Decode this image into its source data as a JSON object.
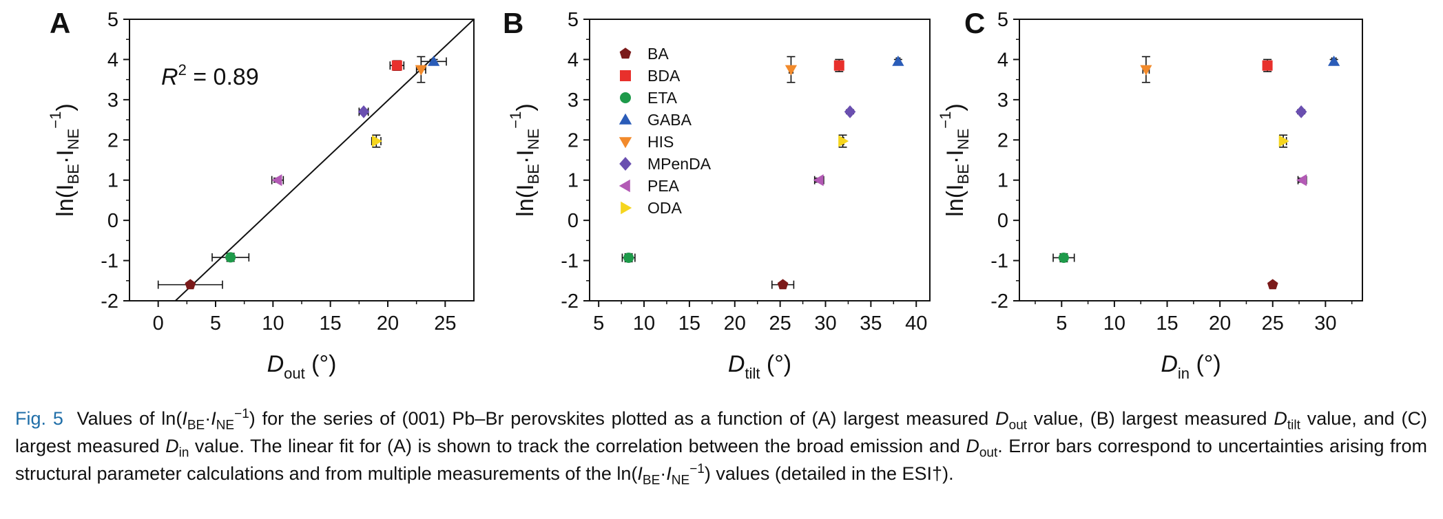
{
  "figure": {
    "ytick_labels": [
      "-2",
      "-1",
      "0",
      "1",
      "2",
      "3",
      "4",
      "5"
    ],
    "ylabel": {
      "prefix": "ln(I",
      "sub1": "BE",
      "mid": "·I",
      "sub2": "NE",
      "sup": "−1",
      "suffix": ")"
    },
    "unit": "(°)"
  },
  "chart_data": [
    {
      "type": "scatter",
      "panel": "A",
      "xlabel": {
        "symbol": "D",
        "sub": "out",
        "unit": "(°)"
      },
      "xlim": [
        -2.5,
        27.5
      ],
      "ylim": [
        -2,
        5
      ],
      "xticks": [
        0,
        5,
        10,
        15,
        20,
        25
      ],
      "yticks": [
        -2,
        -1,
        0,
        1,
        2,
        3,
        4,
        5
      ],
      "annotation": {
        "text_pre": "R",
        "sup": "2",
        "text_post": " = 0.89"
      },
      "fit_line": {
        "label": "linear fit",
        "x": [
          1.5,
          27.5
        ],
        "y": [
          -2.0,
          5.0
        ]
      },
      "series": [
        {
          "name": "BA",
          "x": 2.8,
          "y": -1.6,
          "xerr": 2.8,
          "yerr": 0.02
        },
        {
          "name": "BDA",
          "x": 20.8,
          "y": 3.85,
          "xerr": 0.6,
          "yerr": 0.12
        },
        {
          "name": "ETA",
          "x": 6.3,
          "y": -0.92,
          "xerr": 1.6,
          "yerr": 0.1
        },
        {
          "name": "GABA",
          "x": 24.0,
          "y": 3.95,
          "xerr": 1.1,
          "yerr": 0.05
        },
        {
          "name": "HIS",
          "x": 22.9,
          "y": 3.75,
          "xerr": 0.4,
          "yerr": 0.32
        },
        {
          "name": "MPenDA",
          "x": 17.9,
          "y": 2.7,
          "xerr": 0.4,
          "yerr": 0.05
        },
        {
          "name": "PEA",
          "x": 10.4,
          "y": 1.0,
          "xerr": 0.5,
          "yerr": 0.05
        },
        {
          "name": "ODA",
          "x": 19.0,
          "y": 1.97,
          "xerr": 0.4,
          "yerr": 0.15
        }
      ]
    },
    {
      "type": "scatter",
      "panel": "B",
      "xlabel": {
        "symbol": "D",
        "sub": "tilt",
        "unit": "(°)"
      },
      "xlim": [
        4,
        41.5
      ],
      "ylim": [
        -2,
        5
      ],
      "xticks": [
        5,
        10,
        15,
        20,
        25,
        30,
        35,
        40
      ],
      "yticks": [
        -2,
        -1,
        0,
        1,
        2,
        3,
        4,
        5
      ],
      "legend_position": "top-left",
      "series": [
        {
          "name": "BA",
          "x": 25.3,
          "y": -1.6,
          "xerr": 1.2,
          "yerr": 0.02
        },
        {
          "name": "BDA",
          "x": 31.5,
          "y": 3.85,
          "xerr": 0.2,
          "yerr": 0.15
        },
        {
          "name": "ETA",
          "x": 8.3,
          "y": -0.93,
          "xerr": 0.7,
          "yerr": 0.1
        },
        {
          "name": "GABA",
          "x": 38.0,
          "y": 3.95,
          "xerr": 0.2,
          "yerr": 0.05
        },
        {
          "name": "HIS",
          "x": 26.2,
          "y": 3.75,
          "xerr": 0.2,
          "yerr": 0.32
        },
        {
          "name": "MPenDA",
          "x": 32.7,
          "y": 2.7,
          "xerr": 0.1,
          "yerr": 0.05
        },
        {
          "name": "PEA",
          "x": 29.3,
          "y": 1.0,
          "xerr": 0.5,
          "yerr": 0.05
        },
        {
          "name": "ODA",
          "x": 31.9,
          "y": 1.97,
          "xerr": 0.1,
          "yerr": 0.15
        }
      ]
    },
    {
      "type": "scatter",
      "panel": "C",
      "xlabel": {
        "symbol": "D",
        "sub": "in",
        "unit": "(°)"
      },
      "xlim": [
        1,
        33.5
      ],
      "ylim": [
        -2,
        5
      ],
      "xticks": [
        5,
        10,
        15,
        20,
        25,
        30
      ],
      "yticks": [
        -2,
        -1,
        0,
        1,
        2,
        3,
        4,
        5
      ],
      "series": [
        {
          "name": "BA",
          "x": 25.0,
          "y": -1.6,
          "xerr": 0.1,
          "yerr": 0.02
        },
        {
          "name": "BDA",
          "x": 24.5,
          "y": 3.85,
          "xerr": 0.3,
          "yerr": 0.15
        },
        {
          "name": "ETA",
          "x": 5.2,
          "y": -0.93,
          "xerr": 1.0,
          "yerr": 0.1
        },
        {
          "name": "GABA",
          "x": 30.8,
          "y": 3.95,
          "xerr": 0.2,
          "yerr": 0.05
        },
        {
          "name": "HIS",
          "x": 13.0,
          "y": 3.75,
          "xerr": 0.3,
          "yerr": 0.32
        },
        {
          "name": "MPenDA",
          "x": 27.7,
          "y": 2.7,
          "xerr": 0.1,
          "yerr": 0.05
        },
        {
          "name": "PEA",
          "x": 27.8,
          "y": 1.0,
          "xerr": 0.4,
          "yerr": 0.05
        },
        {
          "name": "ODA",
          "x": 26.0,
          "y": 1.97,
          "xerr": 0.3,
          "yerr": 0.15
        }
      ]
    }
  ],
  "legend": [
    {
      "name": "BA",
      "marker": "pentagon",
      "color": "#7b1a1a"
    },
    {
      "name": "BDA",
      "marker": "square",
      "color": "#e8302c"
    },
    {
      "name": "ETA",
      "marker": "circle",
      "color": "#1e9a4a"
    },
    {
      "name": "GABA",
      "marker": "triangle-up",
      "color": "#2a5cb8"
    },
    {
      "name": "HIS",
      "marker": "triangle-down",
      "color": "#f28a2b"
    },
    {
      "name": "MPenDA",
      "marker": "diamond",
      "color": "#6a4fb0"
    },
    {
      "name": "PEA",
      "marker": "triangle-left",
      "color": "#b35ab5"
    },
    {
      "name": "ODA",
      "marker": "triangle-right",
      "color": "#f5d51e"
    }
  ],
  "caption": {
    "label": "Fig. 5",
    "t1": "Values of ln(",
    "ibe_i": "I",
    "ibe_sub": "BE",
    "dot1": "·",
    "ine_i": "I",
    "ine_sub": "NE",
    "ine_sup": "−1",
    "t2": ") for the series of (001) Pb–Br perovskites plotted as a function of (A) largest measured ",
    "d1": "D",
    "d1_sub": "out",
    "t3": " value, (B) largest measured ",
    "d2": "D",
    "d2_sub": "tilt",
    "t4": " value, and (C) largest measured ",
    "d3": "D",
    "d3_sub": "in",
    "t5": " value. The linear fit for (A) is shown to track the correlation between the broad emission and ",
    "d4": "D",
    "d4_sub": "out",
    "t6": ". Error bars correspond to uncertainties arising from structural parameter calculations and from multiple measurements of the ln(",
    "ibe2_i": "I",
    "ibe2_sub": "BE",
    "dot2": "·",
    "ine2_i": "I",
    "ine2_sub": "NE",
    "ine2_sup": "−1",
    "t7": ") values (detailed in the ESI†)."
  }
}
